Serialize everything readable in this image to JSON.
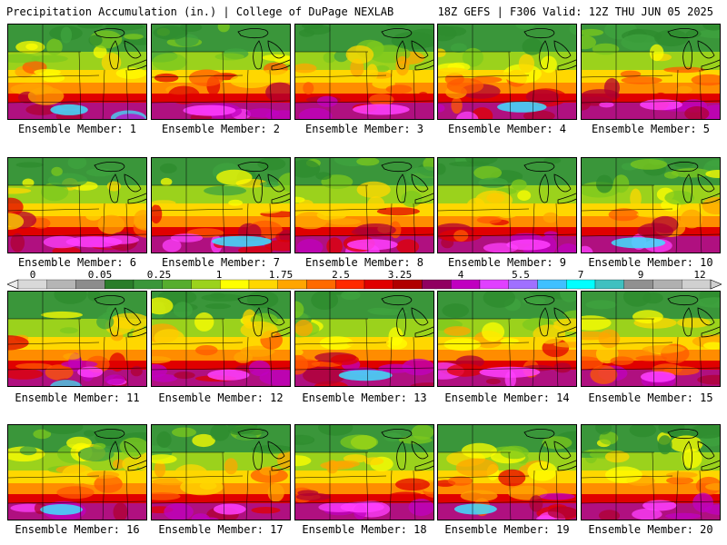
{
  "header": {
    "left": "Precipitation Accumulation (in.) | College of DuPage NEXLAB",
    "right": "18Z GEFS | F306 Valid: 12Z THU JUN 05 2025"
  },
  "panels": [
    {
      "label": "Ensemble Member: 1"
    },
    {
      "label": "Ensemble Member: 2"
    },
    {
      "label": "Ensemble Member: 3"
    },
    {
      "label": "Ensemble Member: 4"
    },
    {
      "label": "Ensemble Member: 5"
    },
    {
      "label": "Ensemble Member: 6"
    },
    {
      "label": "Ensemble Member: 7"
    },
    {
      "label": "Ensemble Member: 8"
    },
    {
      "label": "Ensemble Member: 9"
    },
    {
      "label": "Ensemble Member: 10"
    },
    {
      "label": "Ensemble Member: 11"
    },
    {
      "label": "Ensemble Member: 12"
    },
    {
      "label": "Ensemble Member: 13"
    },
    {
      "label": "Ensemble Member: 14"
    },
    {
      "label": "Ensemble Member: 15"
    },
    {
      "label": "Ensemble Member: 16"
    },
    {
      "label": "Ensemble Member: 17"
    },
    {
      "label": "Ensemble Member: 18"
    },
    {
      "label": "Ensemble Member: 19"
    },
    {
      "label": "Ensemble Member: 20"
    }
  ],
  "colorbar": {
    "tick_labels": [
      "0",
      "0.05",
      "0.25",
      "1",
      "1.75",
      "2.5",
      "3.25",
      "4",
      "5.5",
      "7",
      "9",
      "12"
    ],
    "colors": [
      "#d9d9d9",
      "#b5b5b5",
      "#8c8c8c",
      "#2a7d2a",
      "#3a963a",
      "#56ad2e",
      "#9bd21c",
      "#ffff00",
      "#ffd700",
      "#ffa500",
      "#ff6a00",
      "#ff2a00",
      "#e00000",
      "#b00000",
      "#900060",
      "#c000c0",
      "#e040ff",
      "#a070ff",
      "#40c0ff",
      "#00ffff",
      "#40c0c0",
      "#909090",
      "#b0b0b0",
      "#d0d0d0"
    ]
  }
}
